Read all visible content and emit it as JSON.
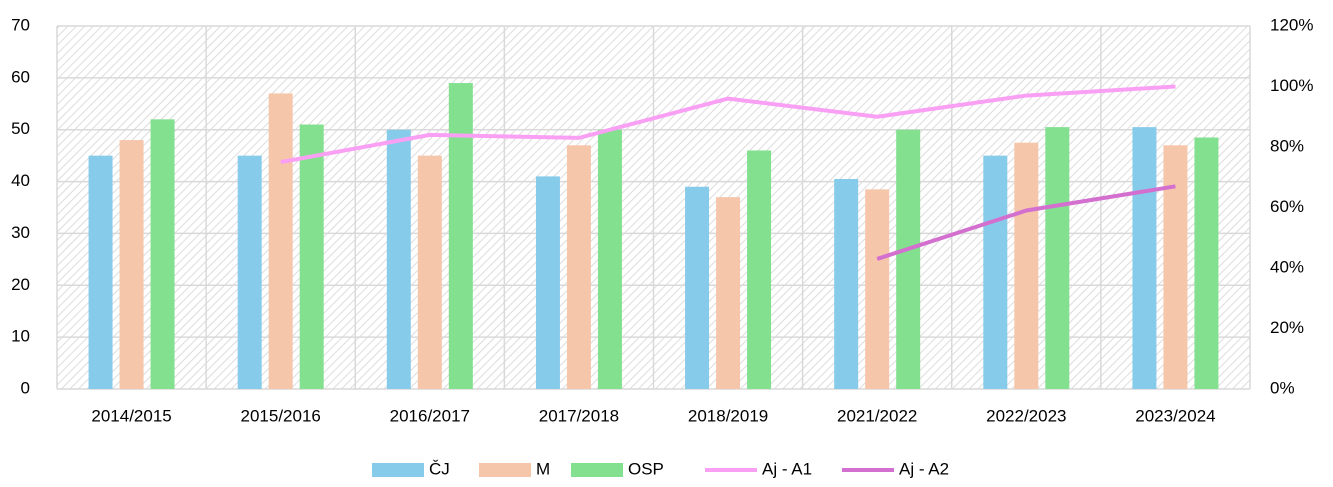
{
  "chart_data": {
    "type": "bar",
    "categories": [
      "2014/2015",
      "2015/2016",
      "2016/2017",
      "2017/2018",
      "2018/2019",
      "2021/2022",
      "2022/2023",
      "2023/2024"
    ],
    "series": [
      {
        "name": "ČJ",
        "type": "bar",
        "color": "#87cbea",
        "values": [
          45,
          45,
          50,
          41,
          39,
          40.5,
          45,
          50.5
        ]
      },
      {
        "name": "M",
        "type": "bar",
        "color": "#f6c6ab",
        "values": [
          48,
          57,
          45,
          47,
          37,
          38.5,
          47.5,
          47
        ]
      },
      {
        "name": "OSP",
        "type": "bar",
        "color": "#82e08e",
        "values": [
          52,
          51,
          59,
          50,
          46,
          50,
          50.5,
          48.5
        ]
      },
      {
        "name": "Aj - A1",
        "type": "line",
        "axis": "y2",
        "color": "#f9a0f5",
        "values": [
          null,
          75,
          84,
          83,
          96,
          90,
          97,
          100
        ]
      },
      {
        "name": "Aj - A2",
        "type": "line",
        "axis": "y2",
        "color": "#d36fcf",
        "values": [
          null,
          null,
          null,
          null,
          null,
          43,
          59,
          67
        ]
      }
    ],
    "ylim": [
      0,
      70
    ],
    "yticks": [
      0,
      10,
      20,
      30,
      40,
      50,
      60,
      70
    ],
    "y2lim": [
      0,
      120
    ],
    "y2ticks": [
      {
        "value": 0,
        "label": "0%"
      },
      {
        "value": 20,
        "label": "20%"
      },
      {
        "value": 40,
        "label": "40%"
      },
      {
        "value": 60,
        "label": "60%"
      },
      {
        "value": 80,
        "label": "80%"
      },
      {
        "value": 100,
        "label": "100%"
      },
      {
        "value": 120,
        "label": "120%"
      }
    ],
    "grid": true,
    "legend": "bottom"
  }
}
